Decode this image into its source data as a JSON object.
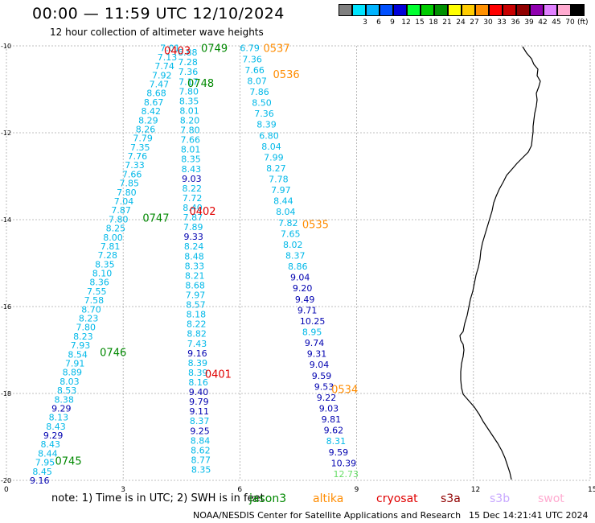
{
  "header": {
    "title": "00:00 — 11:59 UTC 12/10/2024",
    "subtitle": "12 hour collection of altimeter wave heights"
  },
  "legend": {
    "unit": "(ft)",
    "scale": [
      {
        "label": "",
        "color": "#808080"
      },
      {
        "label": "3",
        "color": "#00e5ff"
      },
      {
        "label": "6",
        "color": "#00b4ff"
      },
      {
        "label": "9",
        "color": "#0050ff"
      },
      {
        "label": "12",
        "color": "#0000d8"
      },
      {
        "label": "15",
        "color": "#00ff30"
      },
      {
        "label": "18",
        "color": "#00cc00"
      },
      {
        "label": "21",
        "color": "#009000"
      },
      {
        "label": "24",
        "color": "#ffff00"
      },
      {
        "label": "27",
        "color": "#ffcc00"
      },
      {
        "label": "30",
        "color": "#ff9000"
      },
      {
        "label": "33",
        "color": "#ff0000"
      },
      {
        "label": "36",
        "color": "#c80000"
      },
      {
        "label": "39",
        "color": "#900000"
      },
      {
        "label": "42",
        "color": "#9000b0"
      },
      {
        "label": "45",
        "color": "#e080ff"
      },
      {
        "label": "70",
        "color": "#ffaad0"
      },
      {
        "label": "",
        "color": "#000000"
      }
    ]
  },
  "axes": {
    "lat_ticks": [
      "-10",
      "-12",
      "-14",
      "-16",
      "-18",
      "-20"
    ],
    "lon_ticks": [
      "0",
      "3",
      "6",
      "9",
      "12",
      "15"
    ]
  },
  "colors": {
    "cyan": "#00b8e8",
    "navy": "#0000b0",
    "green": "#008800",
    "red": "#e00000",
    "orange": "#ff8c00",
    "lightgreen": "#66dd66"
  },
  "track_labels": [
    {
      "text": "0403",
      "color": "red",
      "lat": -10.1,
      "lon": 4.05
    },
    {
      "text": "0749",
      "color": "green",
      "lat": -10.05,
      "lon": 5.0
    },
    {
      "text": "0537",
      "color": "orange",
      "lat": -10.05,
      "lon": 6.6
    },
    {
      "text": "0536",
      "color": "orange",
      "lat": -10.65,
      "lon": 6.85
    },
    {
      "text": "0748",
      "color": "green",
      "lat": -10.85,
      "lon": 4.65
    },
    {
      "text": "0402",
      "color": "red",
      "lat": -13.8,
      "lon": 4.7
    },
    {
      "text": "0747",
      "color": "green",
      "lat": -13.95,
      "lon": 3.5
    },
    {
      "text": "0535",
      "color": "orange",
      "lat": -14.1,
      "lon": 7.6
    },
    {
      "text": "0746",
      "color": "green",
      "lat": -17.05,
      "lon": 2.4
    },
    {
      "text": "0401",
      "color": "red",
      "lat": -17.55,
      "lon": 5.1
    },
    {
      "text": "0534",
      "color": "orange",
      "lat": -17.9,
      "lon": 8.35
    },
    {
      "text": "0745",
      "color": "green",
      "lat": -19.55,
      "lon": 1.25
    }
  ],
  "tracks": [
    {
      "name": "track-0749",
      "start_lat": -10.05,
      "start_lon": 3.95,
      "end_lat": -20.0,
      "end_lon": 0.6,
      "values": [
        {
          "v": "7.01",
          "c": "cyan"
        },
        {
          "v": "7.13",
          "c": "cyan"
        },
        {
          "v": "7.74",
          "c": "cyan"
        },
        {
          "v": "7.92",
          "c": "cyan"
        },
        {
          "v": "7.47",
          "c": "cyan"
        },
        {
          "v": "8.68",
          "c": "cyan"
        },
        {
          "v": "8.67",
          "c": "cyan"
        },
        {
          "v": "8.42",
          "c": "cyan"
        },
        {
          "v": "8.29",
          "c": "cyan"
        },
        {
          "v": "8.26",
          "c": "cyan"
        },
        {
          "v": "7.79",
          "c": "cyan"
        },
        {
          "v": "7.35",
          "c": "cyan"
        },
        {
          "v": "7.76",
          "c": "cyan"
        },
        {
          "v": "7.33",
          "c": "cyan"
        },
        {
          "v": "7.66",
          "c": "cyan"
        },
        {
          "v": "7.85",
          "c": "cyan"
        },
        {
          "v": "7.80",
          "c": "cyan"
        },
        {
          "v": "7.04",
          "c": "cyan"
        },
        {
          "v": "7.87",
          "c": "cyan"
        },
        {
          "v": "7.80",
          "c": "cyan"
        },
        {
          "v": "8.25",
          "c": "cyan"
        },
        {
          "v": "8.00",
          "c": "cyan"
        },
        {
          "v": "7.81",
          "c": "cyan"
        },
        {
          "v": "7.28",
          "c": "cyan"
        },
        {
          "v": "8.35",
          "c": "cyan"
        },
        {
          "v": "8.10",
          "c": "cyan"
        },
        {
          "v": "8.36",
          "c": "cyan"
        },
        {
          "v": "7.55",
          "c": "cyan"
        },
        {
          "v": "7.58",
          "c": "cyan"
        },
        {
          "v": "8.70",
          "c": "cyan"
        },
        {
          "v": "8.23",
          "c": "cyan"
        },
        {
          "v": "7.80",
          "c": "cyan"
        },
        {
          "v": "8.23",
          "c": "cyan"
        },
        {
          "v": "7.93",
          "c": "cyan"
        },
        {
          "v": "8.54",
          "c": "cyan"
        },
        {
          "v": "7.91",
          "c": "cyan"
        },
        {
          "v": "8.89",
          "c": "cyan"
        },
        {
          "v": "8.03",
          "c": "cyan"
        },
        {
          "v": "8.53",
          "c": "cyan"
        },
        {
          "v": "8.38",
          "c": "cyan"
        },
        {
          "v": "9.29",
          "c": "navy"
        },
        {
          "v": "8.13",
          "c": "cyan"
        },
        {
          "v": "8.43",
          "c": "cyan"
        },
        {
          "v": "9.29",
          "c": "navy"
        },
        {
          "v": "8.43",
          "c": "cyan"
        },
        {
          "v": "8.44",
          "c": "cyan"
        },
        {
          "v": "7.95",
          "c": "cyan"
        },
        {
          "v": "8.45",
          "c": "cyan"
        },
        {
          "v": "9.16",
          "c": "navy"
        }
      ]
    },
    {
      "name": "track-0403",
      "start_lat": -10.15,
      "start_lon": 4.4,
      "end_lat": -19.75,
      "end_lon": 4.75,
      "values": [
        {
          "v": "6.88",
          "c": "cyan"
        },
        {
          "v": "7.28",
          "c": "cyan"
        },
        {
          "v": "7.36",
          "c": "cyan"
        },
        {
          "v": "7.17",
          "c": "cyan"
        },
        {
          "v": "7.80",
          "c": "cyan"
        },
        {
          "v": "8.35",
          "c": "cyan"
        },
        {
          "v": "8.01",
          "c": "cyan"
        },
        {
          "v": "8.20",
          "c": "cyan"
        },
        {
          "v": "7.80",
          "c": "cyan"
        },
        {
          "v": "7.66",
          "c": "cyan"
        },
        {
          "v": "8.01",
          "c": "cyan"
        },
        {
          "v": "8.35",
          "c": "cyan"
        },
        {
          "v": "8.43",
          "c": "cyan"
        },
        {
          "v": "9.03",
          "c": "navy"
        },
        {
          "v": "8.22",
          "c": "cyan"
        },
        {
          "v": "7.72",
          "c": "cyan"
        },
        {
          "v": "8.40",
          "c": "cyan"
        },
        {
          "v": "7.87",
          "c": "cyan"
        },
        {
          "v": "7.89",
          "c": "cyan"
        },
        {
          "v": "9.33",
          "c": "navy"
        },
        {
          "v": "8.24",
          "c": "cyan"
        },
        {
          "v": "8.48",
          "c": "cyan"
        },
        {
          "v": "8.33",
          "c": "cyan"
        },
        {
          "v": "8.21",
          "c": "cyan"
        },
        {
          "v": "8.68",
          "c": "cyan"
        },
        {
          "v": "7.97",
          "c": "cyan"
        },
        {
          "v": "8.57",
          "c": "cyan"
        },
        {
          "v": "8.18",
          "c": "cyan"
        },
        {
          "v": "8.22",
          "c": "cyan"
        },
        {
          "v": "8.82",
          "c": "cyan"
        },
        {
          "v": "7.43",
          "c": "cyan"
        },
        {
          "v": "9.16",
          "c": "navy"
        },
        {
          "v": "8.39",
          "c": "cyan"
        },
        {
          "v": "8.39",
          "c": "cyan"
        },
        {
          "v": "8.16",
          "c": "cyan"
        },
        {
          "v": "9.40",
          "c": "navy"
        },
        {
          "v": "9.79",
          "c": "navy"
        },
        {
          "v": "9.11",
          "c": "navy"
        },
        {
          "v": "8.37",
          "c": "cyan"
        },
        {
          "v": "9.25",
          "c": "navy"
        },
        {
          "v": "8.84",
          "c": "cyan"
        },
        {
          "v": "8.62",
          "c": "cyan"
        },
        {
          "v": "8.77",
          "c": "cyan"
        },
        {
          "v": "8.35",
          "c": "cyan"
        }
      ]
    },
    {
      "name": "track-0537",
      "start_lat": -10.05,
      "start_lon": 6.0,
      "end_lat": -19.85,
      "end_lon": 8.4,
      "values": [
        {
          "v": "6.79",
          "c": "cyan"
        },
        {
          "v": "7.36",
          "c": "cyan"
        },
        {
          "v": "7.66",
          "c": "cyan"
        },
        {
          "v": "8.07",
          "c": "cyan"
        },
        {
          "v": "7.86",
          "c": "cyan"
        },
        {
          "v": "8.50",
          "c": "cyan"
        },
        {
          "v": "7.36",
          "c": "cyan"
        },
        {
          "v": "8.39",
          "c": "cyan"
        },
        {
          "v": "6.80",
          "c": "cyan"
        },
        {
          "v": "8.04",
          "c": "cyan"
        },
        {
          "v": "7.99",
          "c": "cyan"
        },
        {
          "v": "8.27",
          "c": "cyan"
        },
        {
          "v": "7.78",
          "c": "cyan"
        },
        {
          "v": "7.97",
          "c": "cyan"
        },
        {
          "v": "8.44",
          "c": "cyan"
        },
        {
          "v": "8.04",
          "c": "cyan"
        },
        {
          "v": "7.82",
          "c": "cyan"
        },
        {
          "v": "7.65",
          "c": "cyan"
        },
        {
          "v": "8.02",
          "c": "cyan"
        },
        {
          "v": "8.37",
          "c": "cyan"
        },
        {
          "v": "8.86",
          "c": "cyan"
        },
        {
          "v": "9.04",
          "c": "navy"
        },
        {
          "v": "9.20",
          "c": "navy"
        },
        {
          "v": "9.49",
          "c": "navy"
        },
        {
          "v": "9.71",
          "c": "navy"
        },
        {
          "v": "10.25",
          "c": "navy"
        },
        {
          "v": "8.95",
          "c": "cyan"
        },
        {
          "v": "9.74",
          "c": "navy"
        },
        {
          "v": "9.31",
          "c": "navy"
        },
        {
          "v": "9.04",
          "c": "navy"
        },
        {
          "v": "9.59",
          "c": "navy"
        },
        {
          "v": "9.53",
          "c": "navy"
        },
        {
          "v": "9.22",
          "c": "navy"
        },
        {
          "v": "9.03",
          "c": "navy"
        },
        {
          "v": "9.81",
          "c": "navy"
        },
        {
          "v": "9.62",
          "c": "navy"
        },
        {
          "v": "8.31",
          "c": "cyan"
        },
        {
          "v": "9.59",
          "c": "navy"
        },
        {
          "v": "10.39",
          "c": "navy"
        },
        {
          "v": "12.73",
          "c": "lightgreen"
        }
      ]
    }
  ],
  "footer": {
    "notes": "note:  1) Time is in UTC; 2) SWH is in feet",
    "satellites": [
      {
        "name": "jason3",
        "color": "#008800"
      },
      {
        "name": "altika",
        "color": "#ff8c00"
      },
      {
        "name": "cryosat",
        "color": "#e00000"
      },
      {
        "name": "s3a",
        "color": "#900000"
      },
      {
        "name": "s3b",
        "color": "#c8a8ff"
      },
      {
        "name": "swot",
        "color": "#ffaad0"
      }
    ],
    "credit": "NOAA/NESDIS Center for Satellite Applications and Research",
    "timestamp": "15 Dec 14:21:41 UTC 2024"
  }
}
